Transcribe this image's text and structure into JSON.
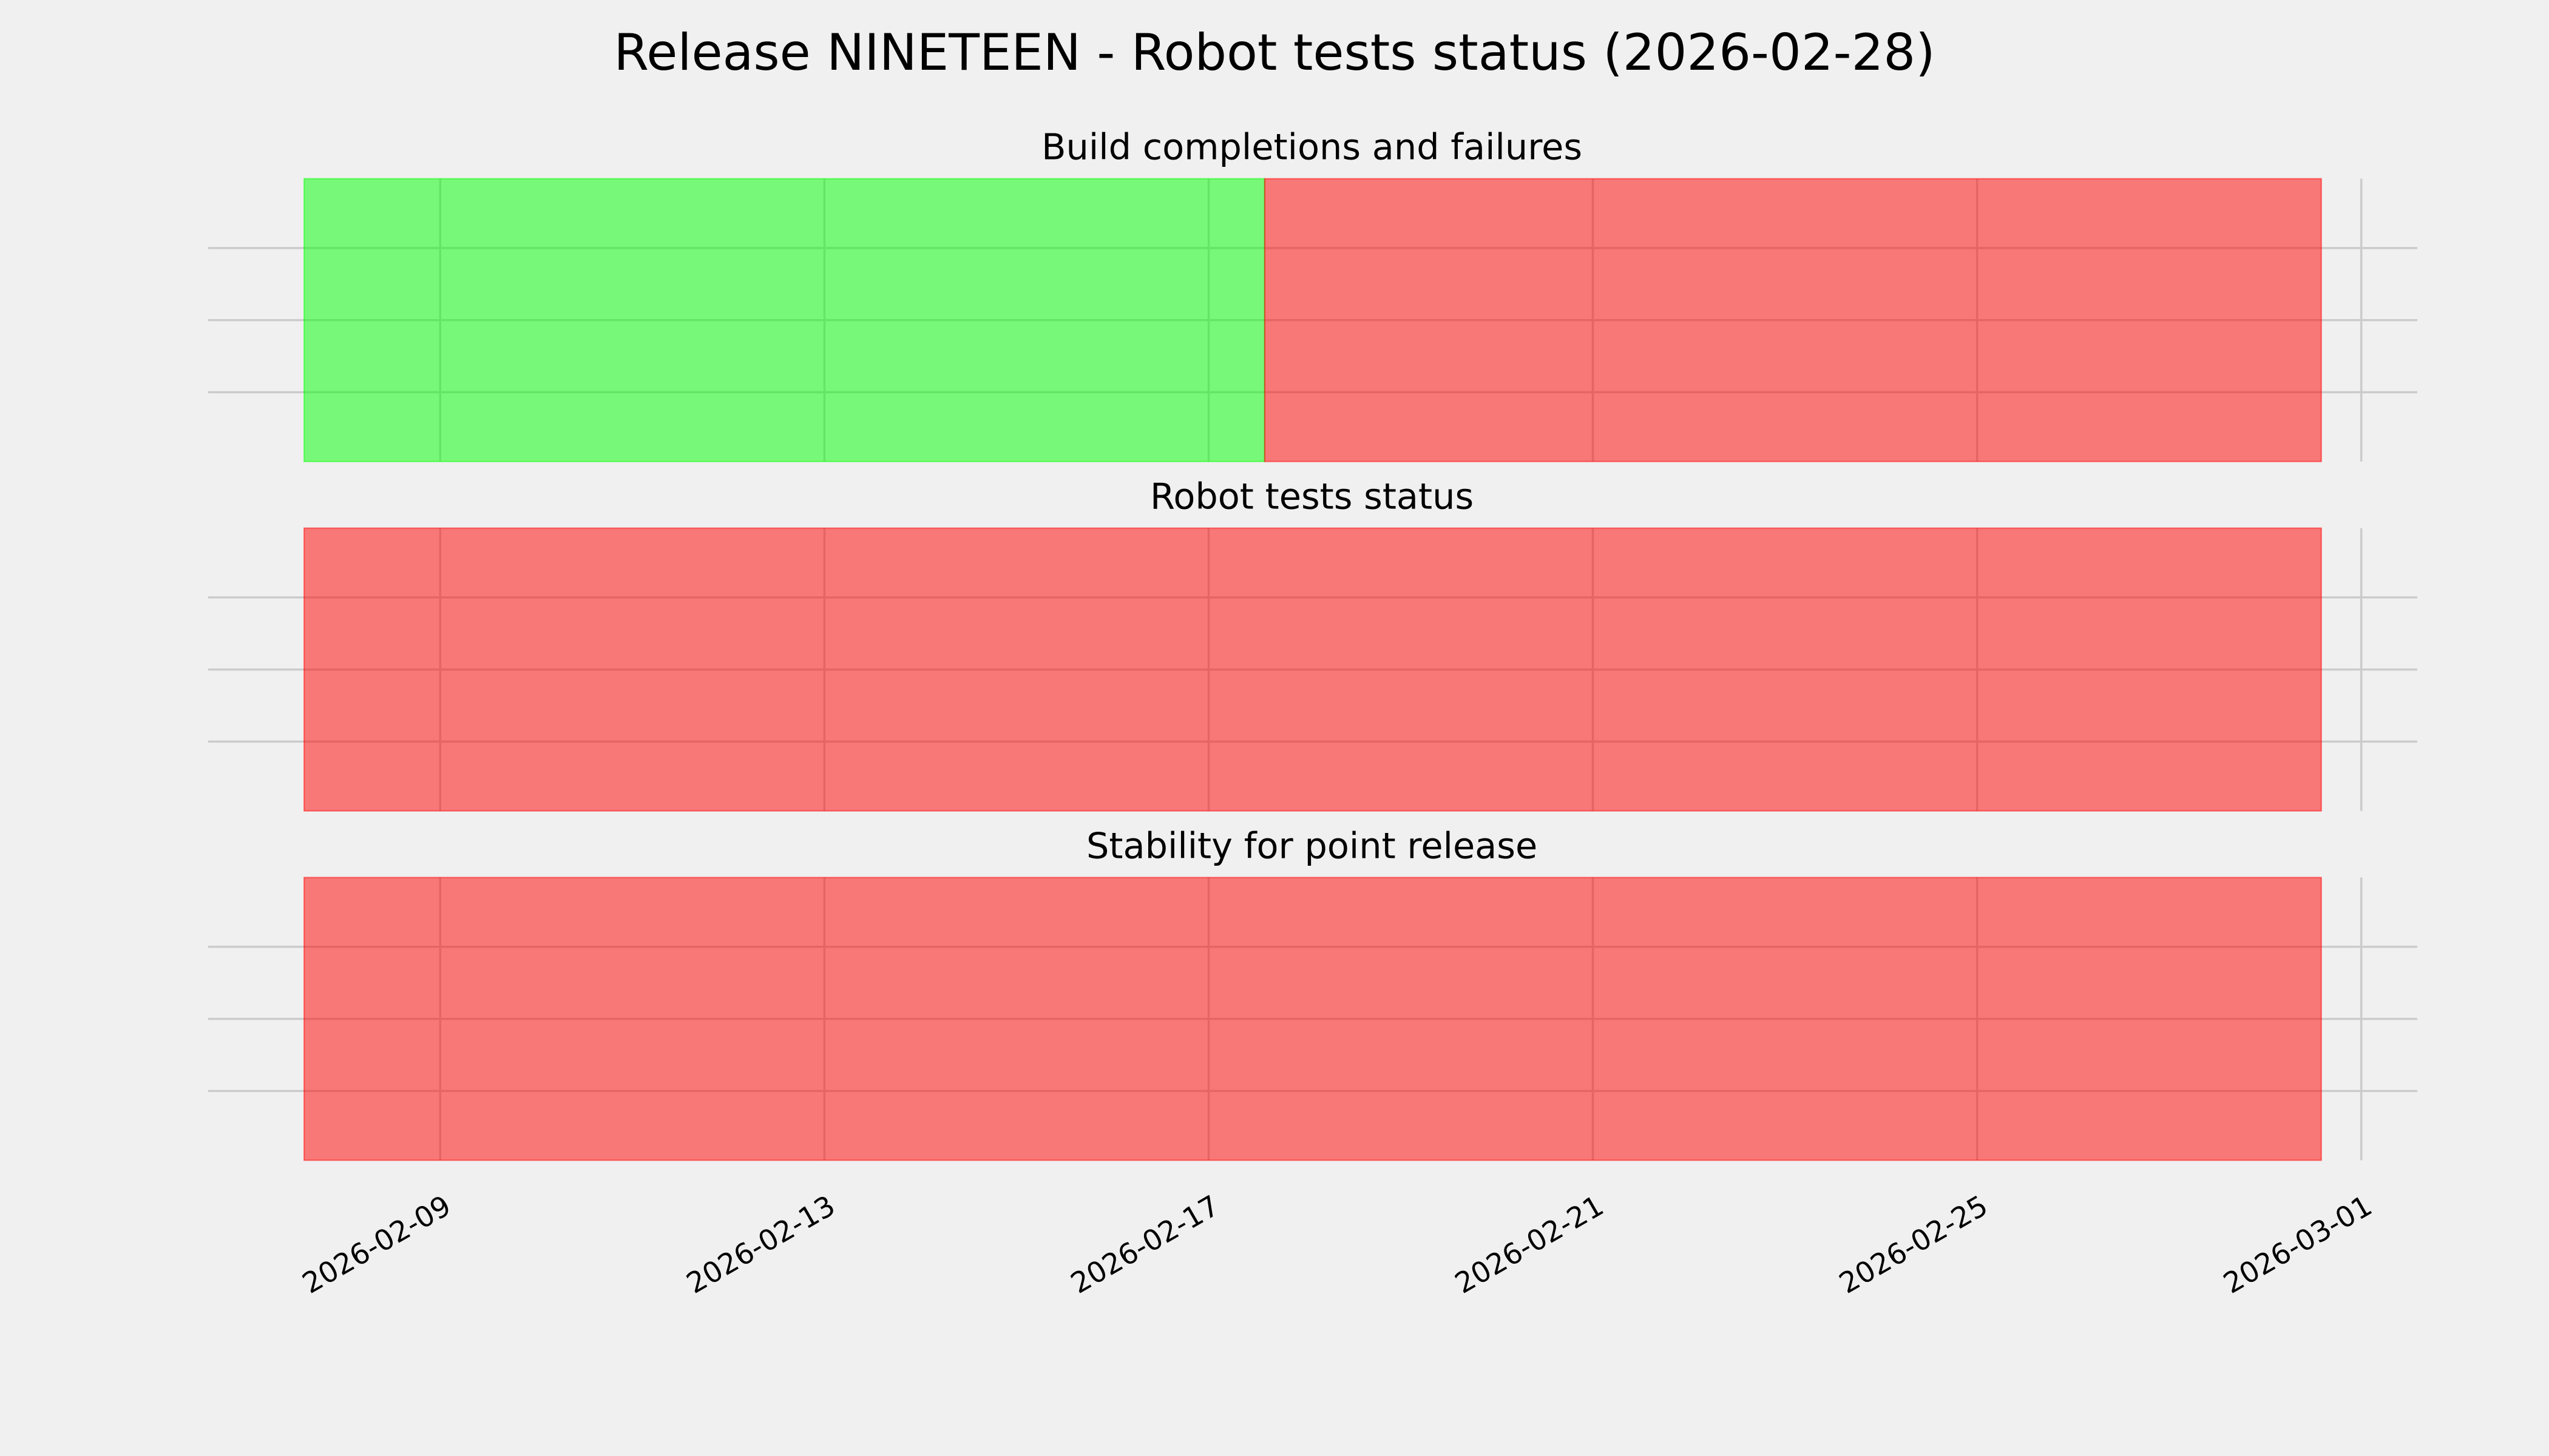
{
  "chart_data": [
    {
      "type": "timeline",
      "suptitle": "Release NINETEEN - Robot tests status (2026-02-28)",
      "title": "Build completions and failures",
      "xlim": [
        "2026-02-06T14:00",
        "2026-03-01T14:00"
      ],
      "x_ticks": [
        "2026-02-09",
        "2026-02-13",
        "2026-02-17",
        "2026-02-21",
        "2026-02-25",
        "2026-03-01"
      ],
      "grid": true,
      "spans": [
        {
          "start": "2026-02-07T14:00",
          "end": "2026-02-17T14:00",
          "status": "pass",
          "color": "#00ff00"
        },
        {
          "start": "2026-02-17T14:00",
          "end": "2026-02-28T14:00",
          "status": "fail",
          "color": "#ff0000"
        }
      ]
    },
    {
      "type": "timeline",
      "title": "Robot tests status",
      "xlim": [
        "2026-02-06T14:00",
        "2026-03-01T14:00"
      ],
      "grid": true,
      "spans": [
        {
          "start": "2026-02-07T14:00",
          "end": "2026-02-28T14:00",
          "status": "fail",
          "color": "#ff0000"
        }
      ]
    },
    {
      "type": "timeline",
      "title": "Stability for point release",
      "xlim": [
        "2026-02-06T14:00",
        "2026-03-01T14:00"
      ],
      "grid": true,
      "spans": [
        {
          "start": "2026-02-07T14:00",
          "end": "2026-02-28T14:00",
          "status": "fail",
          "color": "#ff0000"
        }
      ]
    }
  ],
  "style": {
    "background": "#f0f0f0",
    "grid_color": "#cbcbcb",
    "span_opacity": 0.5
  }
}
